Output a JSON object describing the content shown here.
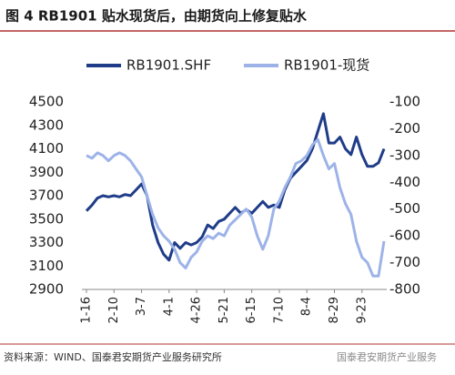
{
  "chart_data": {
    "type": "line",
    "title": "图 4   RB1901 贴水现货后，由期货向上修复贴水",
    "source": "资料来源：WIND、国泰君安期货产业服务研究所",
    "watermark": "国泰君安期货产业服务",
    "categories": [
      "1-16",
      null,
      null,
      null,
      null,
      "2-10",
      null,
      null,
      null,
      null,
      "3-7",
      null,
      null,
      null,
      null,
      "4-1",
      null,
      null,
      null,
      null,
      "4-26",
      null,
      null,
      null,
      null,
      "5-21",
      null,
      null,
      null,
      null,
      "6-15",
      null,
      null,
      null,
      null,
      "7-10",
      null,
      null,
      null,
      null,
      "8-4",
      null,
      null,
      null,
      null,
      "8-29",
      null,
      null,
      null,
      null,
      "9-23",
      null,
      null,
      null,
      null
    ],
    "series": [
      {
        "name": "RB1901.SHF",
        "color": "#1f3c88",
        "values": [
          3570,
          3620,
          3680,
          3700,
          3690,
          3700,
          3690,
          3710,
          3700,
          3750,
          3800,
          3700,
          3450,
          3300,
          3200,
          3150,
          3300,
          3250,
          3300,
          3280,
          3300,
          3350,
          3450,
          3420,
          3480,
          3500,
          3550,
          3600,
          3550,
          3580,
          3550,
          3600,
          3650,
          3600,
          3620,
          3600,
          3750,
          3850,
          3900,
          3950,
          4000,
          4100,
          4250,
          4400,
          4150,
          4150,
          4200,
          4100,
          4050,
          4200,
          4050,
          3950,
          3950,
          3980,
          4100
        ]
      },
      {
        "name": "RB1901-现货",
        "color": "#9db3e8",
        "axis": "y2",
        "values": [
          -300,
          -310,
          -290,
          -300,
          -320,
          -300,
          -290,
          -300,
          -320,
          -350,
          -380,
          -450,
          -520,
          -570,
          -600,
          -620,
          -650,
          -700,
          -720,
          -680,
          -660,
          -620,
          -600,
          -610,
          -590,
          -600,
          -560,
          -540,
          -520,
          -500,
          -530,
          -600,
          -650,
          -600,
          -500,
          -470,
          -420,
          -380,
          -330,
          -320,
          -300,
          -260,
          -240,
          -300,
          -350,
          -330,
          -420,
          -480,
          -520,
          -620,
          -680,
          -700,
          -750,
          -750,
          -620
        ]
      }
    ],
    "ylim": [
      2900,
      4500
    ],
    "yticks": [
      2900,
      3100,
      3300,
      3500,
      3700,
      3900,
      4100,
      4300,
      4500
    ],
    "y2lim": [
      -800,
      -100
    ],
    "y2ticks": [
      -800,
      -700,
      -600,
      -500,
      -400,
      -300,
      -200,
      -100
    ],
    "grid": false
  }
}
